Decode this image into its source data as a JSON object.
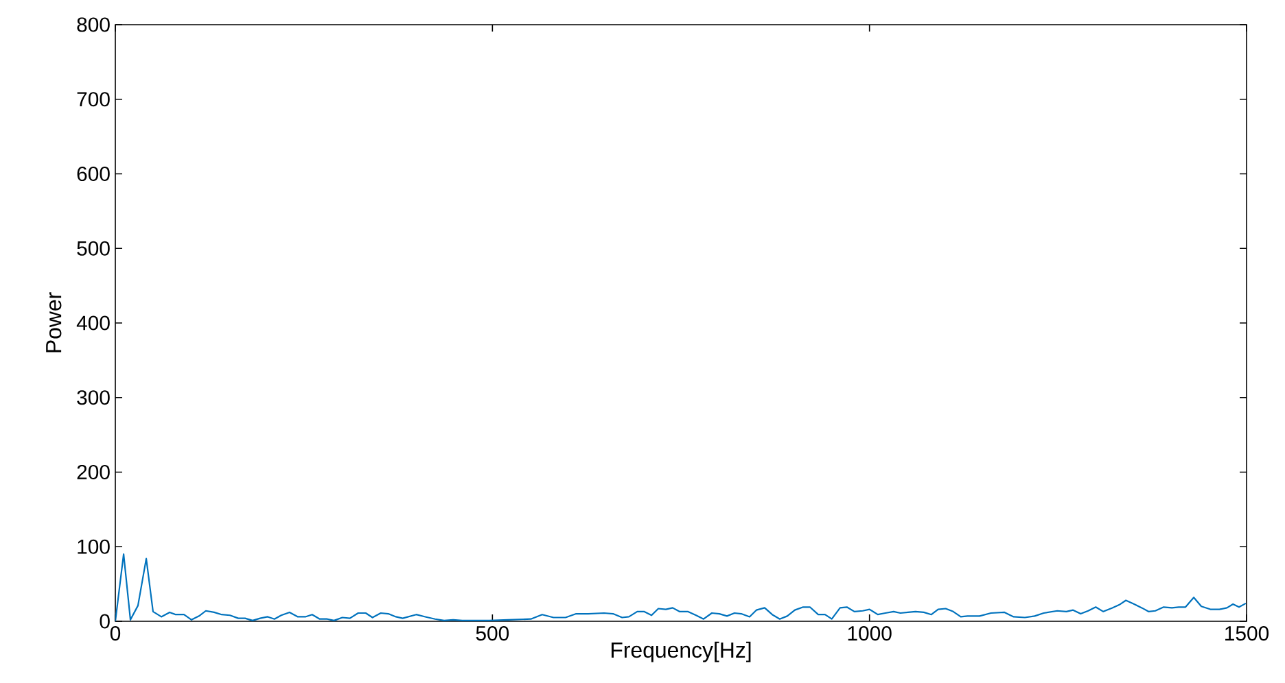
{
  "chart_data": {
    "type": "line",
    "xlabel": "Frequency[Hz]",
    "ylabel": "Power",
    "color": "#0072bd",
    "xlim": [
      0,
      1500
    ],
    "ylim": [
      0,
      800
    ],
    "xticks": [
      0,
      500,
      1000,
      1500
    ],
    "yticks": [
      0,
      100,
      200,
      300,
      400,
      500,
      600,
      700,
      800
    ],
    "x": [
      0,
      11,
      20,
      30,
      41,
      50,
      61,
      72,
      80,
      91,
      101,
      111,
      120,
      131,
      141,
      152,
      163,
      172,
      182,
      192,
      202,
      211,
      220,
      231,
      242,
      252,
      261,
      271,
      281,
      290,
      301,
      311,
      322,
      332,
      341,
      352,
      362,
      372,
      381,
      399,
      411,
      424,
      436,
      448,
      460,
      496,
      521,
      551,
      566,
      581,
      597,
      611,
      627,
      648,
      660,
      672,
      681,
      692,
      701,
      711,
      720,
      730,
      739,
      748,
      759,
      770,
      780,
      791,
      801,
      811,
      821,
      830,
      841,
      850,
      861,
      871,
      881,
      891,
      901,
      912,
      921,
      932,
      941,
      950,
      961,
      970,
      980,
      991,
      1000,
      1011,
      1021,
      1032,
      1041,
      1051,
      1061,
      1072,
      1082,
      1091,
      1101,
      1111,
      1121,
      1130,
      1146,
      1161,
      1179,
      1191,
      1206,
      1219,
      1231,
      1249,
      1261,
      1270,
      1280,
      1290,
      1300,
      1310,
      1322,
      1331,
      1340,
      1351,
      1361,
      1370,
      1379,
      1390,
      1401,
      1410,
      1419,
      1430,
      1440,
      1452,
      1464,
      1474,
      1482,
      1490,
      1499
    ],
    "values": [
      0,
      90,
      2,
      21,
      84,
      13,
      6,
      12,
      9,
      9,
      2,
      7,
      14,
      12,
      9,
      8,
      4,
      4,
      1,
      4,
      6,
      3,
      8,
      12,
      6,
      6,
      9,
      3,
      3,
      1,
      5,
      4,
      11,
      11,
      5,
      11,
      10,
      6,
      4,
      9,
      6,
      3,
      1,
      2,
      1,
      1,
      2,
      3,
      9,
      5,
      5,
      10,
      10,
      11,
      10,
      5,
      6,
      13,
      13,
      8,
      17,
      16,
      18,
      13,
      13,
      8,
      3,
      11,
      10,
      7,
      11,
      10,
      6,
      15,
      18,
      9,
      3,
      7,
      15,
      19,
      19,
      9,
      9,
      3,
      18,
      19,
      13,
      14,
      16,
      9,
      11,
      13,
      11,
      12,
      13,
      12,
      9,
      16,
      17,
      13,
      6,
      7,
      7,
      11,
      12,
      6,
      5,
      7,
      11,
      14,
      13,
      15,
      10,
      14,
      19,
      13,
      18,
      22,
      28,
      23,
      18,
      13,
      14,
      19,
      18,
      19,
      19,
      32,
      20,
      16,
      16,
      18,
      23,
      19,
      24
    ]
  }
}
